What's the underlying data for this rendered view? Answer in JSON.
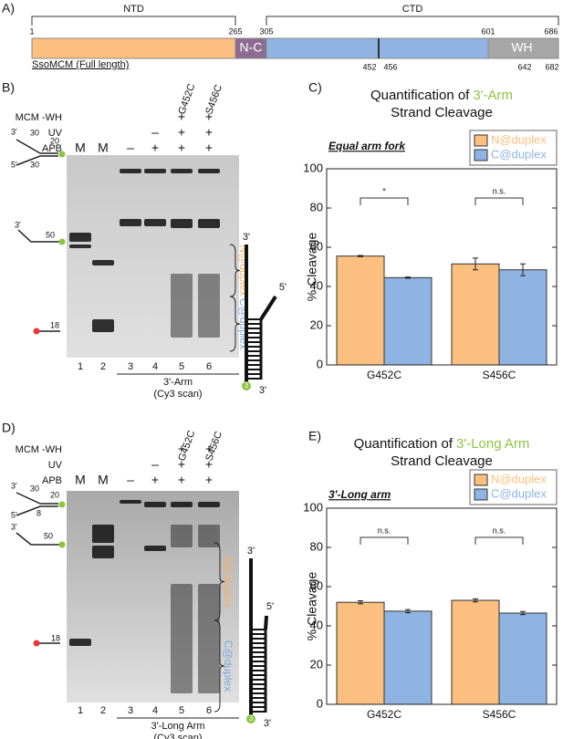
{
  "panel_a": {
    "label": "A)",
    "regions": [
      "NTD",
      "CTD"
    ],
    "domains": [
      "N-C",
      "WH"
    ],
    "positions_top": [
      "1",
      "265",
      "305",
      "601",
      "686"
    ],
    "positions_bottom": [
      "452",
      "456",
      "642",
      "682"
    ],
    "protein": "SsoMCM (Full length)"
  },
  "gels": [
    {
      "label": "B)",
      "lane_headers": [
        "G452C",
        "S456C"
      ],
      "conditions": [
        {
          "label": "MCM -WH",
          "marks": [
            null,
            null,
            null,
            null,
            "+",
            "+"
          ]
        },
        {
          "label": "UV",
          "marks": [
            null,
            null,
            null,
            "–",
            "+",
            "+"
          ]
        },
        {
          "label": "APB",
          "marks": [
            "M",
            "M",
            "–",
            "+",
            "+",
            "+"
          ]
        }
      ],
      "lanes": [
        "1",
        "2",
        "3",
        "4",
        "5",
        "6"
      ],
      "substrate": "3'-Arm",
      "scan": "(Cy3 scan)",
      "regions": [
        "N@duplex",
        "C@duplex"
      ],
      "fork_labels": [
        "3'",
        "30",
        "20",
        "5'",
        "30",
        "3'",
        "50",
        "18"
      ],
      "strand_labels": [
        "3'",
        "5'",
        "3'",
        "3"
      ]
    },
    {
      "label": "D)",
      "lane_headers": [
        "G452C",
        "S456C"
      ],
      "conditions": [
        {
          "label": "MCM -WH",
          "marks": [
            null,
            null,
            null,
            null,
            "+",
            "+"
          ]
        },
        {
          "label": "UV",
          "marks": [
            null,
            null,
            null,
            "–",
            "+",
            "+"
          ]
        },
        {
          "label": "APB",
          "marks": [
            "M",
            "M",
            "–",
            "+",
            "+",
            "+"
          ]
        }
      ],
      "lanes": [
        "1",
        "2",
        "3",
        "4",
        "5",
        "6"
      ],
      "substrate": "3'-Long Arm",
      "scan": "(Cy3 scan)",
      "regions": [
        "N@duplex",
        "C@duplex"
      ],
      "fork_labels": [
        "3'",
        "30",
        "20",
        "5'",
        "8",
        "3'",
        "50",
        "18"
      ],
      "strand_labels": [
        "3'",
        "5'",
        "3'",
        "3"
      ]
    }
  ],
  "chart_data": [
    {
      "type": "bar",
      "panel_label": "C)",
      "title_parts": [
        "Quantification of",
        "3'-Arm",
        "Strand Cleavage"
      ],
      "title_highlight_color": "#8cc63f",
      "subtitle": "Equal arm fork",
      "ylabel": "% Cleavage",
      "categories": [
        "G452C",
        "S456C"
      ],
      "series": [
        {
          "name": "N@duplex",
          "color": "#fbbf7f",
          "values": [
            55.5,
            51.5
          ],
          "errors": [
            0.3,
            3
          ]
        },
        {
          "name": "C@duplex",
          "color": "#8fb4e3",
          "values": [
            44.5,
            48.5
          ],
          "errors": [
            0.3,
            3
          ]
        }
      ],
      "significance": [
        "*",
        "n.s."
      ],
      "ylim": [
        0,
        100
      ],
      "yticks": [
        0,
        20,
        40,
        60,
        80,
        100
      ],
      "legend": "upper right"
    },
    {
      "type": "bar",
      "panel_label": "E)",
      "title_parts": [
        "Quantification of",
        "3'-Long Arm",
        "Strand Cleavage"
      ],
      "title_highlight_color": "#8cc63f",
      "subtitle": "3'-Long arm",
      "ylabel": "% Cleavage",
      "categories": [
        "G452C",
        "S456C"
      ],
      "series": [
        {
          "name": "N@duplex",
          "color": "#fbbf7f",
          "values": [
            52,
            53
          ],
          "errors": [
            0.8,
            0.8
          ]
        },
        {
          "name": "C@duplex",
          "color": "#8fb4e3",
          "values": [
            47.5,
            46.5
          ],
          "errors": [
            0.8,
            0.8
          ]
        }
      ],
      "significance": [
        "n.s.",
        "n.s."
      ],
      "ylim": [
        0,
        100
      ],
      "yticks": [
        0,
        20,
        40,
        60,
        80,
        100
      ],
      "legend": "upper right"
    }
  ]
}
